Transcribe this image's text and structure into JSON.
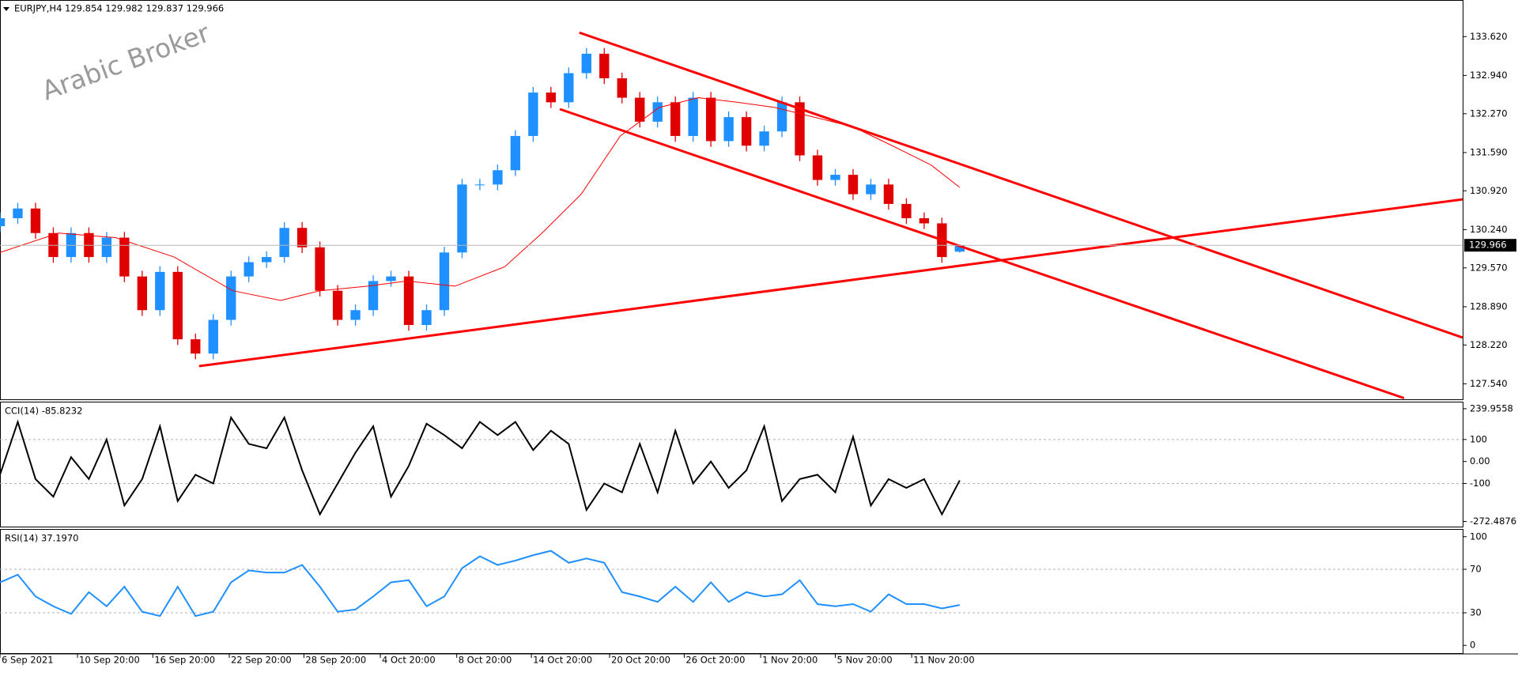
{
  "chart_data": [
    {
      "type": "candlestick",
      "title": "EURJPY,H4  129.854 129.982 129.837 129.966",
      "watermark": "Arabic Broker",
      "xlim": [
        0,
        82.3
      ],
      "ylim": [
        127.269,
        134.247
      ],
      "yticks": [
        {
          "value": 133.62,
          "label": "133.620"
        },
        {
          "value": 132.94,
          "label": "132.940"
        },
        {
          "value": 132.27,
          "label": "132.270"
        },
        {
          "value": 131.59,
          "label": "131.590"
        },
        {
          "value": 130.92,
          "label": "130.920"
        },
        {
          "value": 130.24,
          "label": "130.240"
        },
        {
          "value": 129.57,
          "label": "129.570"
        },
        {
          "value": 128.89,
          "label": "128.890"
        },
        {
          "value": 128.22,
          "label": "128.220"
        },
        {
          "value": 127.54,
          "label": "127.540"
        }
      ],
      "up_color": "#1e90ff",
      "down_color": "#e00000",
      "open": [
        130.3,
        130.44,
        130.61,
        130.18,
        129.76,
        130.18,
        129.76,
        130.1,
        129.42,
        128.83,
        129.5,
        128.32,
        128.07,
        128.66,
        129.42,
        129.67,
        129.76,
        130.27,
        129.93,
        129.17,
        128.66,
        128.83,
        129.34,
        129.42,
        128.57,
        128.83,
        129.84,
        131.03,
        131.03,
        131.28,
        131.88,
        132.64,
        132.47,
        132.98,
        133.32,
        132.89,
        132.55,
        132.13,
        132.47,
        131.88,
        132.55,
        131.79,
        132.21,
        131.71,
        131.96,
        132.47,
        131.54,
        131.11,
        131.2,
        130.86,
        131.03,
        130.69,
        130.44,
        130.35,
        129.854
      ],
      "high": [
        130.54,
        130.71,
        130.71,
        130.28,
        130.28,
        130.28,
        130.2,
        130.2,
        129.52,
        129.6,
        129.6,
        128.42,
        128.76,
        129.52,
        129.77,
        129.86,
        130.37,
        130.37,
        130.03,
        129.27,
        128.93,
        129.44,
        129.52,
        129.52,
        128.93,
        129.94,
        131.13,
        131.13,
        131.38,
        131.98,
        132.74,
        132.74,
        133.08,
        133.42,
        133.42,
        132.99,
        132.65,
        132.57,
        132.57,
        132.65,
        132.65,
        132.31,
        132.31,
        132.06,
        132.57,
        132.57,
        131.64,
        131.3,
        131.3,
        131.13,
        131.13,
        130.79,
        130.54,
        130.45,
        129.982
      ],
      "low": [
        130.2,
        130.34,
        130.08,
        129.66,
        129.66,
        129.66,
        129.66,
        129.32,
        128.73,
        128.73,
        128.22,
        127.97,
        127.97,
        128.56,
        129.32,
        129.57,
        129.66,
        129.83,
        129.07,
        128.56,
        128.56,
        128.73,
        129.24,
        128.47,
        128.47,
        128.73,
        129.74,
        130.93,
        130.93,
        131.18,
        131.78,
        132.37,
        132.37,
        132.88,
        132.79,
        132.45,
        132.03,
        132.03,
        131.78,
        131.78,
        131.69,
        131.69,
        131.61,
        131.61,
        131.86,
        131.44,
        131.01,
        131.01,
        130.76,
        130.76,
        130.59,
        130.34,
        130.25,
        129.66,
        129.837
      ],
      "close": [
        130.44,
        130.61,
        130.18,
        129.76,
        130.18,
        129.76,
        130.1,
        129.42,
        128.83,
        129.5,
        128.32,
        128.07,
        128.66,
        129.42,
        129.67,
        129.76,
        130.27,
        129.93,
        129.17,
        128.66,
        128.83,
        129.34,
        129.42,
        128.57,
        128.83,
        129.84,
        131.03,
        131.03,
        131.28,
        131.88,
        132.64,
        132.47,
        132.98,
        133.32,
        132.89,
        132.55,
        132.13,
        132.47,
        131.88,
        132.55,
        131.79,
        132.21,
        131.71,
        131.96,
        132.47,
        131.54,
        131.11,
        131.2,
        130.86,
        131.03,
        130.69,
        130.44,
        130.35,
        129.76,
        129.966
      ],
      "moving_average": {
        "color": "#ff0000",
        "x": [
          0,
          3.3,
          6.5,
          9.8,
          13.1,
          15.8,
          18,
          20.7,
          22.9,
          25.6,
          28.4,
          30.5,
          32.7,
          34.9,
          37.1,
          39.3,
          41.5,
          43.6,
          45.8,
          48,
          50.2,
          52.4,
          54
        ],
        "values": [
          129.84,
          130.18,
          130.1,
          129.76,
          129.17,
          129.0,
          129.17,
          129.25,
          129.34,
          129.25,
          129.59,
          130.18,
          130.86,
          131.88,
          132.38,
          132.55,
          132.47,
          132.38,
          132.21,
          132.04,
          131.71,
          131.37,
          130.98
        ]
      },
      "trendlines": [
        {
          "color": "#ff0000",
          "x": [
            32.6,
            82.3
          ],
          "y": [
            133.69,
            128.35
          ]
        },
        {
          "color": "#ff0000",
          "x": [
            31.5,
            79.0
          ],
          "y": [
            132.35,
            127.29
          ]
        },
        {
          "color": "#ff0000",
          "x": [
            11.2,
            82.3
          ],
          "y": [
            127.85,
            130.77
          ]
        }
      ],
      "last_price": 129.966
    },
    {
      "type": "line",
      "title": "CCI(14) -85.8232",
      "color": "#000000",
      "xlim": [
        0,
        82.3
      ],
      "ylim": [
        -296,
        272
      ],
      "yticks": [
        239.9558,
        100,
        {
          "value": 0,
          "label": "0.00"
        },
        -100,
        -272.4876
      ],
      "levels": [
        100,
        -100
      ],
      "values": [
        -60,
        180,
        -80,
        -160,
        20,
        -80,
        100,
        -200,
        -80,
        160,
        -180,
        -60,
        -100,
        200,
        80,
        60,
        200,
        -40,
        -240,
        -100,
        40,
        160,
        -160,
        -20,
        172,
        120,
        60,
        180,
        120,
        180,
        52,
        140,
        80,
        -220,
        -100,
        -140,
        80,
        -140,
        140,
        -100,
        0,
        -120,
        -40,
        160,
        -180,
        -80,
        -60,
        -140,
        112,
        -200,
        -80,
        -120,
        -80,
        -240,
        -85.8
      ]
    },
    {
      "type": "line",
      "title": "RSI(14) 37.1970",
      "color": "#1e90ff",
      "xlim": [
        0,
        82.3
      ],
      "ylim": [
        -7.1,
        107.1
      ],
      "yticks": [
        100,
        70,
        30,
        0
      ],
      "levels": [
        70,
        30
      ],
      "values": [
        58,
        65,
        45,
        36,
        29,
        49,
        36,
        54,
        31,
        27,
        54,
        27,
        31,
        58,
        69,
        67,
        67,
        74,
        54,
        31,
        33,
        45,
        58,
        60,
        36,
        45,
        71,
        82,
        74,
        78,
        83,
        87,
        76,
        80,
        76,
        49,
        45,
        40,
        54,
        40,
        58,
        40,
        49,
        45,
        47,
        60,
        38,
        36,
        38,
        31,
        47,
        38,
        38,
        34,
        37.2
      ],
      "xticks": [
        {
          "value": 0,
          "label": "6 Sep 2021"
        },
        {
          "value": 4.36,
          "label": "10 Sep 20:00"
        },
        {
          "value": 8.6,
          "label": "16 Sep 20:00"
        },
        {
          "value": 12.9,
          "label": "22 Sep 20:00"
        },
        {
          "value": 17.1,
          "label": "28 Sep 20:00"
        },
        {
          "value": 21.4,
          "label": "4 Oct 20:00"
        },
        {
          "value": 25.7,
          "label": "8 Oct 20:00"
        },
        {
          "value": 29.9,
          "label": "14 Oct 20:00"
        },
        {
          "value": 34.3,
          "label": "20 Oct 20:00"
        },
        {
          "value": 38.5,
          "label": "26 Oct 20:00"
        },
        {
          "value": 42.8,
          "label": "1 Nov 20:00"
        },
        {
          "value": 47.0,
          "label": "5 Nov 20:00"
        },
        {
          "value": 51.3,
          "label": "11 Nov 20:00"
        }
      ]
    }
  ]
}
